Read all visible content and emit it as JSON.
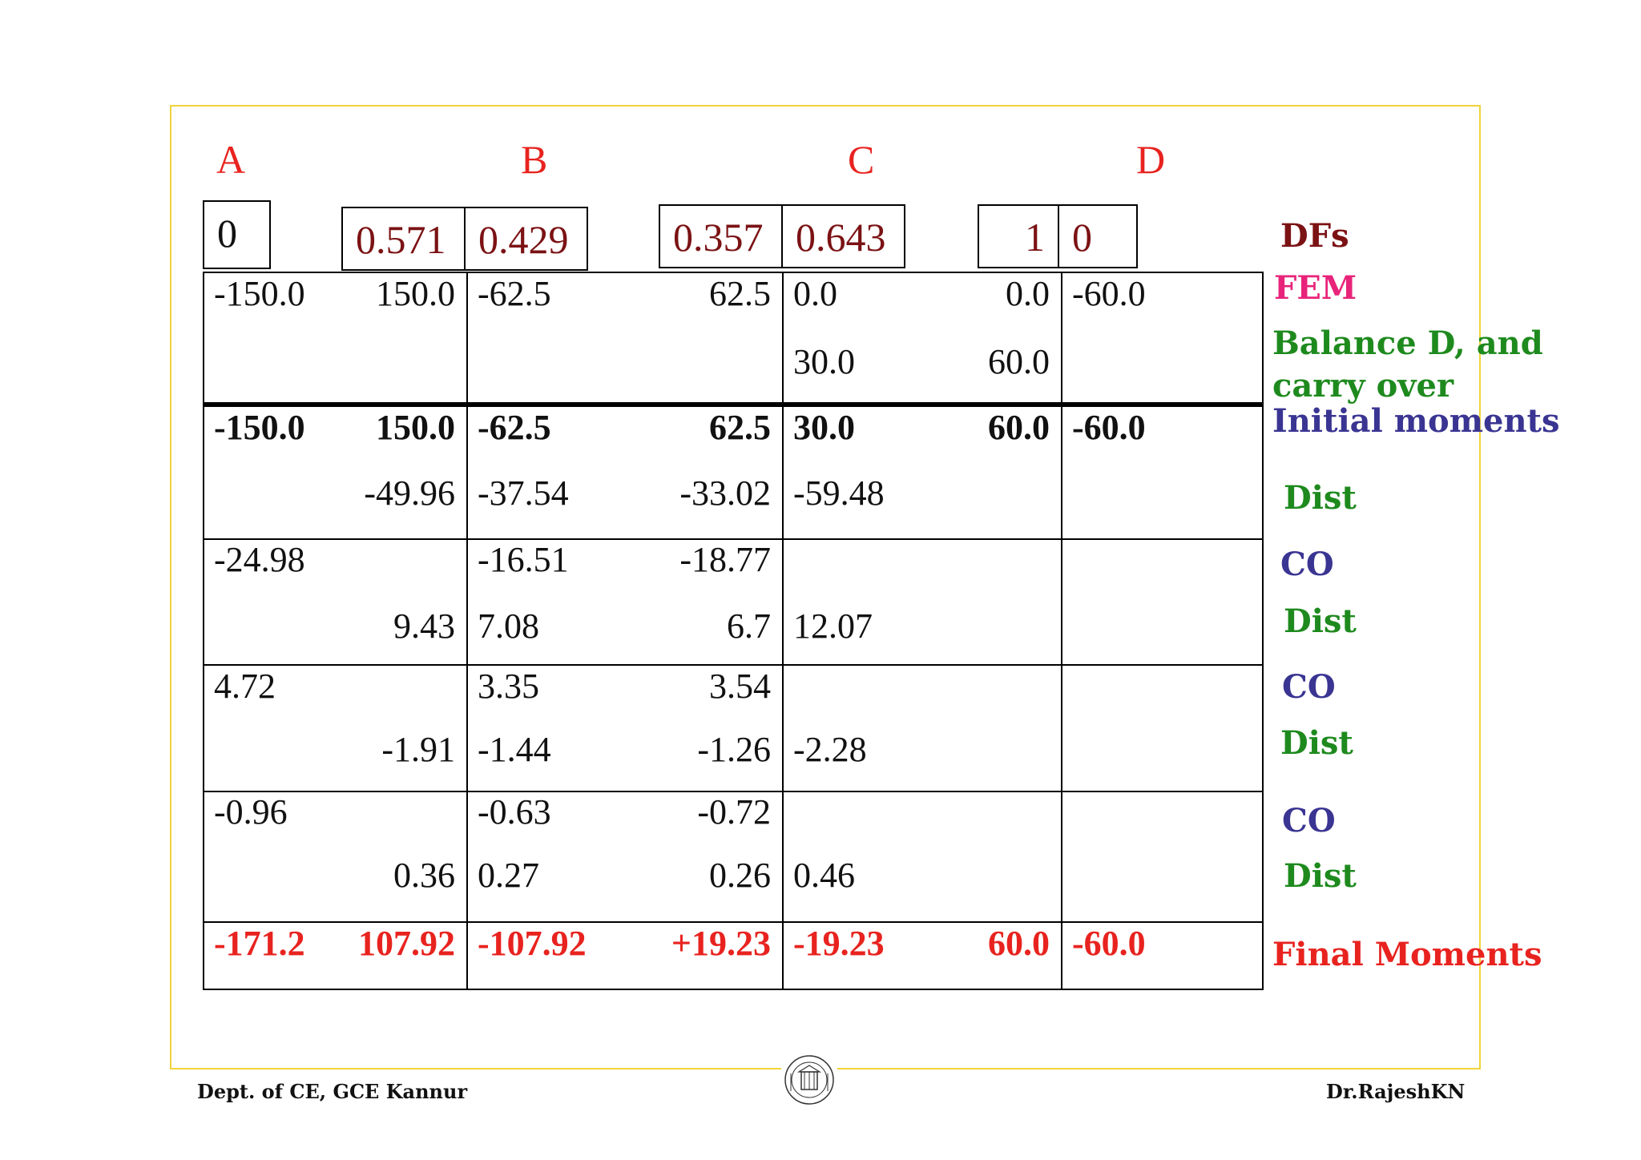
{
  "joints": [
    "A",
    "B",
    "C",
    "D"
  ],
  "dfs": [
    "0",
    "0.571",
    "0.429",
    "0.357",
    "0.643",
    "1",
    "0"
  ],
  "rows": [
    [
      "-150.0",
      "150.0",
      "-62.5",
      "62.5",
      "0.0",
      "0.0",
      "-60.0"
    ],
    [
      "",
      "",
      "",
      "",
      "30.0",
      "60.0",
      ""
    ],
    [
      "-150.0",
      "150.0",
      "-62.5",
      "62.5",
      "30.0",
      "60.0",
      "-60.0"
    ],
    [
      "",
      "-49.96",
      "-37.54",
      "-33.02",
      "-59.48",
      "",
      ""
    ],
    [
      "-24.98",
      "",
      "-16.51",
      "-18.77",
      "",
      "",
      ""
    ],
    [
      "",
      "9.43",
      "7.08",
      "6.7",
      "12.07",
      "",
      ""
    ],
    [
      "4.72",
      "",
      "3.35",
      "3.54",
      "",
      "",
      ""
    ],
    [
      "",
      "-1.91",
      "-1.44",
      "-1.26",
      "-2.28",
      "",
      ""
    ],
    [
      "-0.96",
      "",
      "-0.63",
      "-0.72",
      "",
      "",
      ""
    ],
    [
      "",
      "0.36",
      "0.27",
      "0.26",
      "0.46",
      "",
      ""
    ],
    [
      "-171.2",
      "107.92",
      "-107.92",
      "+19.23",
      "-19.23",
      "60.0",
      "-60.0"
    ]
  ],
  "labels": {
    "dfs": "DFs",
    "fem": "FEM",
    "balance_line1": "Balance D, and",
    "balance_line2": "carry over",
    "initial": "Initial moments",
    "dist1": "Dist",
    "co1": "CO",
    "dist2": "Dist",
    "co2": "CO",
    "dist3": "Dist",
    "co3": "CO",
    "dist4": "Dist",
    "final": "Final Moments"
  },
  "colors": {
    "joint": "#e8231f",
    "df": "#7b1214",
    "dfs_label": "#7b1214",
    "fem": "#e8237a",
    "balance": "#1e8a1e",
    "initial": "#3a3592",
    "dist": "#1e8a1e",
    "co": "#3a3592",
    "final": "#e8231f"
  },
  "footer": {
    "left": "Dept. of CE, GCE Kannur",
    "right": "Dr.RajeshKN"
  }
}
